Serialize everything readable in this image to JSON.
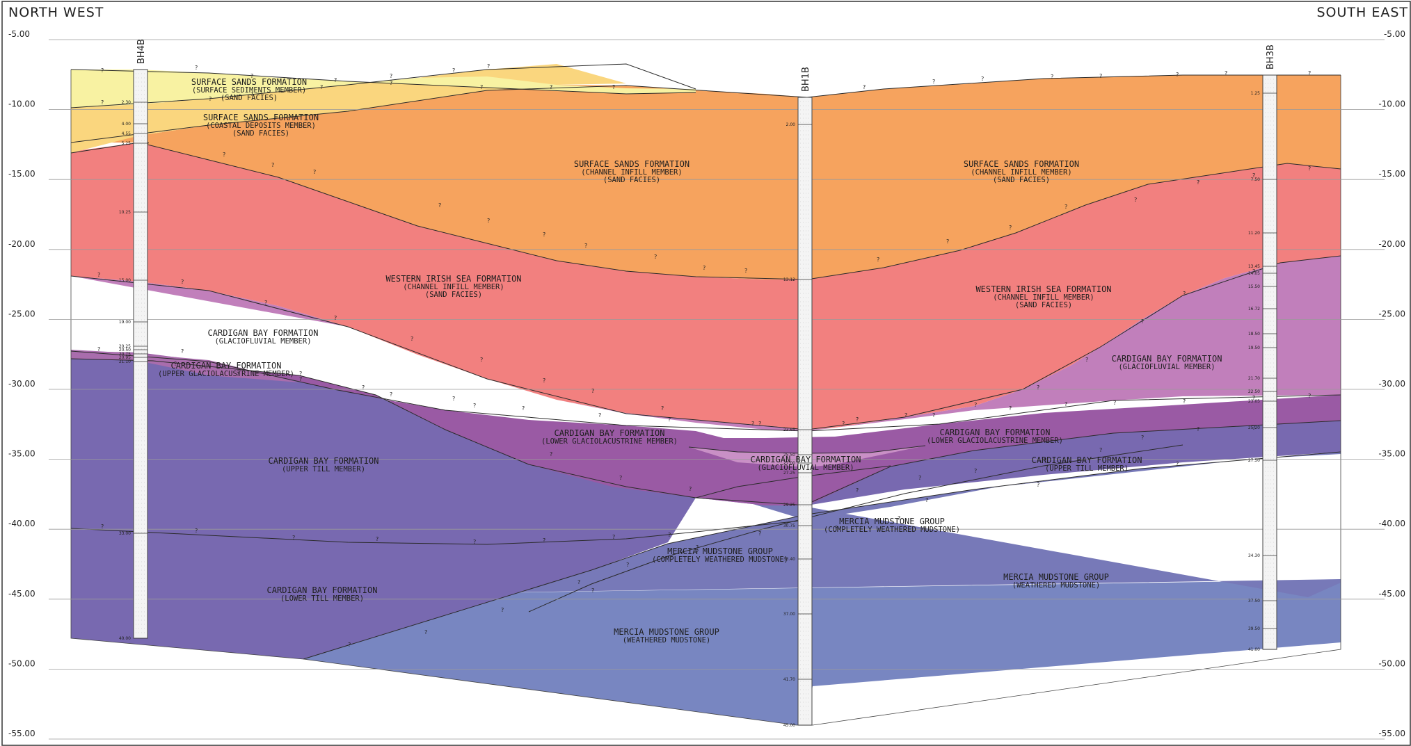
{
  "header": {
    "left": "NORTH WEST",
    "right": "SOUTH EAST"
  },
  "elevation_axis": {
    "min": -55,
    "max": -5,
    "step": 5,
    "labels": [
      "-5.00",
      "-10.00",
      "-15.00",
      "-20.00",
      "-25.00",
      "-30.00",
      "-35.00",
      "-40.00",
      "-45.00",
      "-50.00",
      "-55.00"
    ]
  },
  "colors": {
    "surface_sediments": "#f8f2a2",
    "coastal_deposits": "#fad67e",
    "channel_infill_sand": "#f6a35e",
    "western_irish_sea": "#f2807f",
    "glaciofluvial": "#c17fbb",
    "lower_glaciolacustrine": "#9a5aa4",
    "upper_glaciolacustrine": "#a96dad",
    "till": "#7869b0",
    "completely_weathered_mudstone": "#7779b8",
    "weathered_mudstone": "#7886c1"
  },
  "boreholes": [
    {
      "name": "BH4B",
      "depths": [
        "2.30",
        "4.00",
        "4.55",
        "5.25",
        "10.25",
        "15.00",
        "19.00",
        "20.25",
        "20.50",
        "20.75",
        "20.95",
        "21.10",
        "33.00",
        "40.00"
      ]
    },
    {
      "name": "BH1B",
      "depths": [
        "2.00",
        "13.12",
        "23.65",
        "25.50",
        "27.00",
        "27.25",
        "29.25",
        "30.75",
        "33.40",
        "37.00",
        "41.70",
        "45.00"
      ]
    },
    {
      "name": "BH3B",
      "depths": [
        "1.25",
        "7.50",
        "11.20",
        "13.45",
        "14.05",
        "15.50",
        "16.72",
        "18.50",
        "19.50",
        "21.70",
        "22.50",
        "23.05",
        "25.20",
        "27.50",
        "34.30",
        "37.50",
        "39.50",
        "41.00"
      ]
    }
  ],
  "units": [
    {
      "id": "ss-sediments",
      "lines": [
        "SURFACE SANDS FORMATION",
        "(SURFACE SEDIMENTS MEMBER)",
        "(SAND FACIES)"
      ]
    },
    {
      "id": "ss-coastal",
      "lines": [
        "SURFACE SANDS FORMATION",
        "(COASTAL DEPOSITS MEMBER)",
        "(SAND FACIES)"
      ]
    },
    {
      "id": "ss-channel-left",
      "lines": [
        "SURFACE SANDS FORMATION",
        "(CHANNEL INFILL MEMBER)",
        "(SAND FACIES)"
      ]
    },
    {
      "id": "ss-channel-right",
      "lines": [
        "SURFACE SANDS FORMATION",
        "(CHANNEL INFILL MEMBER)",
        "(SAND FACIES)"
      ]
    },
    {
      "id": "wis-left",
      "lines": [
        "WESTERN IRISH SEA FORMATION",
        "(CHANNEL INFILL MEMBER)",
        "(SAND FACIES)"
      ]
    },
    {
      "id": "wis-right",
      "lines": [
        "WESTERN IRISH SEA FORMATION",
        "(CHANNEL INFILL MEMBER)",
        "(SAND FACIES)"
      ]
    },
    {
      "id": "cb-glacio-left",
      "lines": [
        "CARDIGAN BAY FORMATION",
        "(GLACIOFLUVIAL MEMBER)"
      ]
    },
    {
      "id": "cb-glacio-right",
      "lines": [
        "CARDIGAN BAY FORMATION",
        "(GLACIOFLUVIAL MEMBER)"
      ]
    },
    {
      "id": "cb-upper-glaciolac",
      "lines": [
        "CARDIGAN BAY FORMATION",
        "(UPPER GLACIOLACUSTRINE MEMBER)"
      ]
    },
    {
      "id": "cb-lower-glaciolac-left",
      "lines": [
        "CARDIGAN BAY FORMATION",
        "(LOWER GLACIOLACUSTRINE MEMBER)"
      ]
    },
    {
      "id": "cb-lower-glaciolac-right",
      "lines": [
        "CARDIGAN BAY FORMATION",
        "(LOWER GLACIOLACUSTRINE MEMBER)"
      ]
    },
    {
      "id": "cb-glacio-lens",
      "lines": [
        "CARDIGAN BAY FORMATION",
        "(GLACIOFLUVIAL MEMBER)"
      ]
    },
    {
      "id": "cb-upper-till-left",
      "lines": [
        "CARDIGAN BAY FORMATION",
        "(UPPER TILL MEMBER)"
      ]
    },
    {
      "id": "cb-upper-till-right",
      "lines": [
        "CARDIGAN BAY FORMATION",
        "(UPPER TILL MEMBER)"
      ]
    },
    {
      "id": "cb-lower-till",
      "lines": [
        "CARDIGAN BAY FORMATION",
        "(LOWER TILL MEMBER)"
      ]
    },
    {
      "id": "mm-cw-middle",
      "lines": [
        "MERCIA MUDSTONE GROUP",
        "(COMPLETELY WEATHERED MUDSTONE)"
      ]
    },
    {
      "id": "mm-cw-right",
      "lines": [
        "MERCIA MUDSTONE GROUP",
        "(COMPLETELY WEATHERED MUDSTONE)"
      ]
    },
    {
      "id": "mm-w-left",
      "lines": [
        "MERCIA MUDSTONE GROUP",
        "(WEATHERED MUDSTONE)"
      ]
    },
    {
      "id": "mm-w-right",
      "lines": [
        "MERCIA MUDSTONE GROUP",
        "(WEATHERED MUDSTONE)"
      ]
    }
  ],
  "uncertain_marker": "?"
}
